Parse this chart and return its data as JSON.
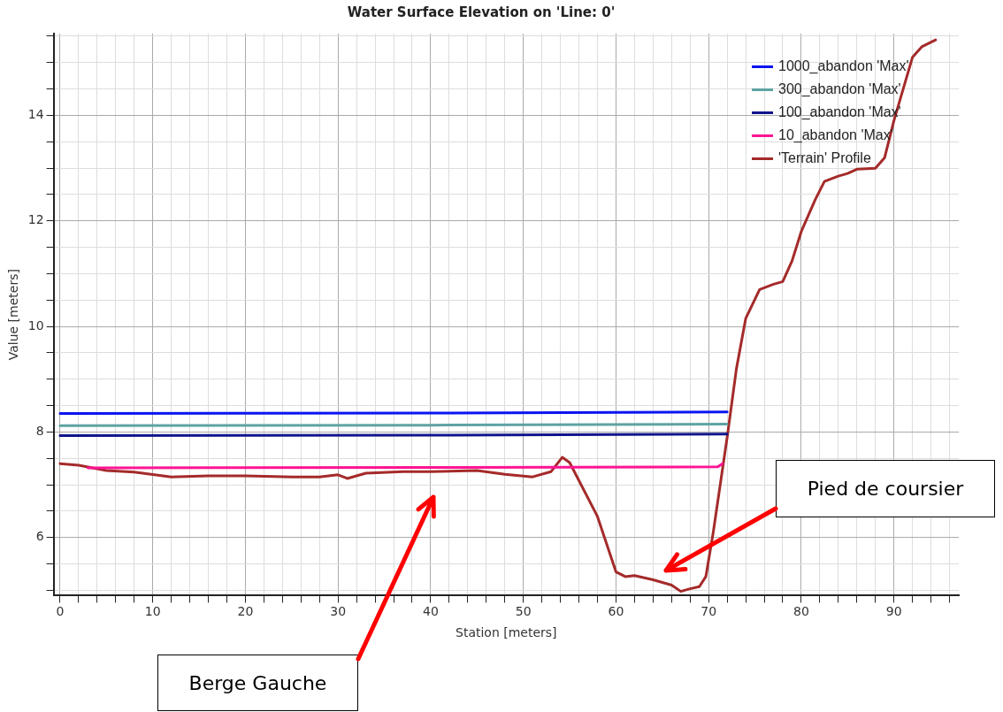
{
  "chart_data": {
    "type": "line",
    "title": "Water Surface Elevation on 'Line: 0'",
    "xlabel": "Station [meters]",
    "ylabel": "Value [meters]",
    "xlim": [
      -0.7,
      97
    ],
    "ylim": [
      4.9,
      15.55
    ],
    "xticks": [
      0,
      {
        "value": 2,
        "label": null
      },
      {
        "value": 4,
        "label": null
      },
      {
        "value": 6,
        "label": null
      },
      {
        "value": 8,
        "label": null
      },
      10,
      {
        "value": 12,
        "label": null
      },
      {
        "value": 14,
        "label": null
      },
      {
        "value": 16,
        "label": null
      },
      {
        "value": 18,
        "label": null
      },
      20,
      {
        "value": 22,
        "label": null
      },
      {
        "value": 24,
        "label": null
      },
      {
        "value": 26,
        "label": null
      },
      {
        "value": 28,
        "label": null
      },
      30,
      {
        "value": 32,
        "label": null
      },
      {
        "value": 34,
        "label": null
      },
      {
        "value": 36,
        "label": null
      },
      {
        "value": 38,
        "label": null
      },
      40,
      {
        "value": 42,
        "label": null
      },
      {
        "value": 44,
        "label": null
      },
      {
        "value": 46,
        "label": null
      },
      {
        "value": 48,
        "label": null
      },
      50,
      {
        "value": 52,
        "label": null
      },
      {
        "value": 54,
        "label": null
      },
      {
        "value": 56,
        "label": null
      },
      {
        "value": 58,
        "label": null
      },
      60,
      {
        "value": 62,
        "label": null
      },
      {
        "value": 64,
        "label": null
      },
      {
        "value": 66,
        "label": null
      },
      {
        "value": 68,
        "label": null
      },
      70,
      {
        "value": 72,
        "label": null
      },
      {
        "value": 74,
        "label": null
      },
      {
        "value": 76,
        "label": null
      },
      {
        "value": 78,
        "label": null
      },
      80,
      {
        "value": 82,
        "label": null
      },
      {
        "value": 84,
        "label": null
      },
      {
        "value": 86,
        "label": null
      },
      {
        "value": 88,
        "label": null
      },
      90,
      {
        "value": 92,
        "label": null
      },
      {
        "value": 94,
        "label": null
      },
      {
        "value": 96,
        "label": null
      }
    ],
    "yticks": [
      {
        "value": 5,
        "label": null
      },
      {
        "value": 5.5,
        "label": null
      },
      6,
      {
        "value": 6.5,
        "label": null
      },
      {
        "value": 7,
        "label": null
      },
      {
        "value": 7.5,
        "label": null
      },
      8,
      {
        "value": 8.5,
        "label": null
      },
      {
        "value": 9,
        "label": null
      },
      {
        "value": 9.5,
        "label": null
      },
      10,
      {
        "value": 10.5,
        "label": null
      },
      {
        "value": 11,
        "label": null
      },
      {
        "value": 11.5,
        "label": null
      },
      12,
      {
        "value": 12.5,
        "label": null
      },
      {
        "value": 13,
        "label": null
      },
      {
        "value": 13.5,
        "label": null
      },
      14,
      {
        "value": 14.5,
        "label": null
      },
      {
        "value": 15,
        "label": null
      },
      {
        "value": 15.5,
        "label": null
      }
    ],
    "grid": true,
    "legend": "top right",
    "marker": "none",
    "line_style": "solid",
    "series": [
      {
        "name": "1000_abandon 'Max'",
        "color": "#0a14f0",
        "x": [
          0,
          40,
          72
        ],
        "values": [
          8.35,
          8.36,
          8.38
        ]
      },
      {
        "name": "300_abandon 'Max'",
        "color": "#5fa3a3",
        "x": [
          0,
          40,
          72
        ],
        "values": [
          8.12,
          8.13,
          8.15
        ]
      },
      {
        "name": "100_abandon 'Max'",
        "color": "#10148c",
        "x": [
          0,
          40,
          72
        ],
        "values": [
          7.93,
          7.94,
          7.96
        ]
      },
      {
        "name": "10_abandon 'Max'",
        "color": "#ff1493",
        "x": [
          3,
          40,
          71,
          71.5
        ],
        "values": [
          7.32,
          7.33,
          7.34,
          7.4
        ]
      },
      {
        "name": "'Terrain' Profile",
        "color": "#a52a2a",
        "x": [
          0,
          2,
          5,
          8,
          12,
          16,
          20,
          25,
          28,
          30,
          31,
          33,
          37,
          40,
          45,
          48,
          51,
          53,
          54.2,
          55,
          58,
          60,
          61,
          62,
          64,
          66,
          67,
          68,
          69,
          69.7,
          70.5,
          72,
          73,
          74,
          75.5,
          77,
          78,
          79,
          80,
          81.5,
          82.5,
          84,
          85,
          86,
          88,
          89,
          90,
          92,
          93,
          94.5
        ],
        "values": [
          7.4,
          7.37,
          7.27,
          7.24,
          7.15,
          7.17,
          7.17,
          7.15,
          7.15,
          7.19,
          7.12,
          7.22,
          7.25,
          7.25,
          7.27,
          7.2,
          7.15,
          7.25,
          7.52,
          7.42,
          6.4,
          5.35,
          5.26,
          5.28,
          5.2,
          5.1,
          4.98,
          5.03,
          5.07,
          5.26,
          6.1,
          7.9,
          9.2,
          10.15,
          10.7,
          10.8,
          10.85,
          11.24,
          11.8,
          12.4,
          12.75,
          12.85,
          12.9,
          12.98,
          13.0,
          13.2,
          13.9,
          15.1,
          15.3,
          15.43
        ]
      }
    ],
    "annotations": [
      "Berge Gauche",
      "Pied de coursier"
    ]
  }
}
